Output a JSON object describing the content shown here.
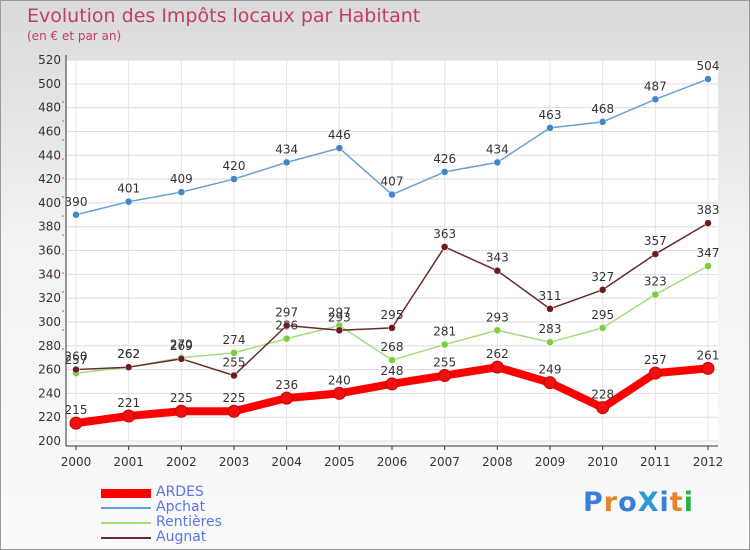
{
  "title": "Evolution des Impôts locaux par Habitant",
  "subtitle": "(en € et par an)",
  "logo": {
    "text": "ProXiti",
    "colors": [
      "#3c7fd6",
      "#e6842a",
      "#3c7fd6",
      "#2a9bd6",
      "#3c7fd6",
      "#e6842a",
      "#2cb04e"
    ]
  },
  "chart_data": {
    "type": "line",
    "title": "Evolution des Impôts locaux par Habitant",
    "subtitle": "(en € et par an)",
    "xlabel": "",
    "ylabel": "",
    "ylim": [
      200,
      520
    ],
    "ytick_step": 20,
    "grid": true,
    "x": [
      "2000",
      "2001",
      "2002",
      "2003",
      "2004",
      "2005",
      "2006",
      "2007",
      "2008",
      "2009",
      "2010",
      "2011",
      "2012"
    ],
    "series": [
      {
        "name": "ARDES",
        "color": "#ff0000",
        "marker": "#ee1111",
        "values": [
          215,
          221,
          225,
          225,
          236,
          240,
          248,
          255,
          262,
          249,
          228,
          257,
          261
        ]
      },
      {
        "name": "Apchat",
        "color": "#6b9fd4",
        "marker": "#3f87c9",
        "values": [
          390,
          401,
          409,
          420,
          434,
          446,
          407,
          426,
          434,
          463,
          468,
          487,
          504
        ]
      },
      {
        "name": "Rentières",
        "color": "#a4dc7e",
        "marker": "#7ccf3c",
        "values": [
          257,
          262,
          270,
          274,
          286,
          297,
          268,
          281,
          293,
          283,
          295,
          323,
          347
        ]
      },
      {
        "name": "Augnat",
        "color": "#6b2a2a",
        "marker": "#6b1c1c",
        "values": [
          260,
          262,
          269,
          255,
          297,
          293,
          295,
          363,
          343,
          311,
          327,
          357,
          383
        ]
      }
    ]
  }
}
